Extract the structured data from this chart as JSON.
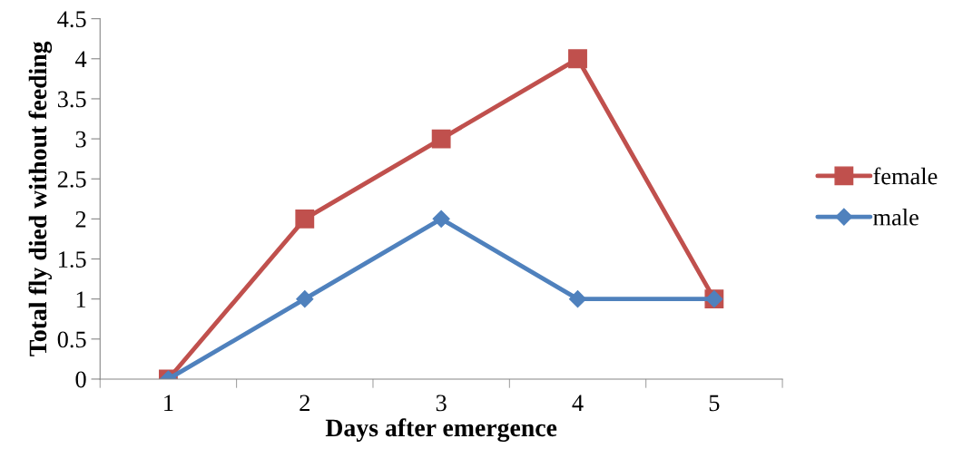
{
  "chart_data": {
    "type": "line",
    "xlabel": "Days after emergence",
    "ylabel": "Total fly died without feeding",
    "categories": [
      "1",
      "2",
      "3",
      "4",
      "5"
    ],
    "series": [
      {
        "name": "female",
        "color": "#c0504d",
        "marker": "square",
        "values": [
          0,
          2,
          3,
          4,
          1
        ]
      },
      {
        "name": "male",
        "color": "#4f81bd",
        "marker": "diamond",
        "values": [
          0,
          1,
          2,
          1,
          1
        ]
      }
    ],
    "ylim": [
      0,
      4.5
    ],
    "yticks": [
      0,
      0.5,
      1,
      1.5,
      2,
      2.5,
      3,
      3.5,
      4,
      4.5
    ],
    "grid": false,
    "legend": "right",
    "line_style": "solid"
  }
}
